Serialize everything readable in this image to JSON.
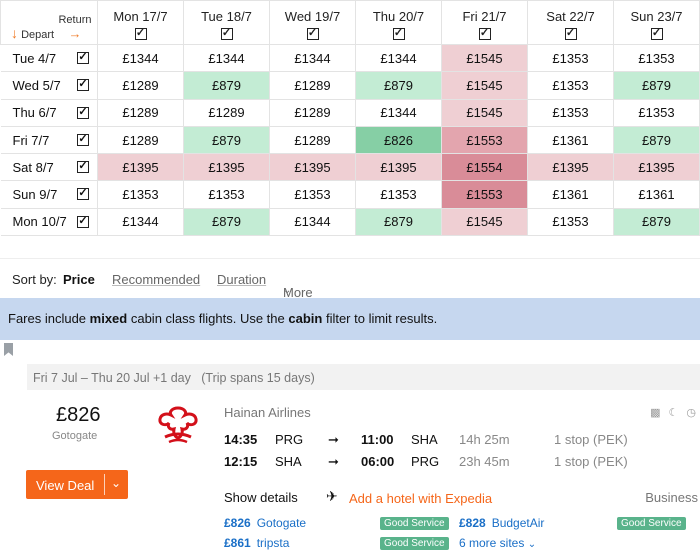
{
  "matrix": {
    "return_label": "Return",
    "depart_label": "Depart",
    "columns": [
      "Mon 17/7",
      "Tue 18/7",
      "Wed 19/7",
      "Thu 20/7",
      "Fri 21/7",
      "Sat 22/7",
      "Sun 23/7"
    ],
    "rows": [
      {
        "label": "Tue 4/7",
        "cells": [
          {
            "p": "£1344",
            "c": ""
          },
          {
            "p": "£1344",
            "c": ""
          },
          {
            "p": "£1344",
            "c": ""
          },
          {
            "p": "£1344",
            "c": ""
          },
          {
            "p": "£1545",
            "c": "r1"
          },
          {
            "p": "£1353",
            "c": ""
          },
          {
            "p": "£1353",
            "c": ""
          }
        ]
      },
      {
        "label": "Wed 5/7",
        "cells": [
          {
            "p": "£1289",
            "c": ""
          },
          {
            "p": "£879",
            "c": "g1"
          },
          {
            "p": "£1289",
            "c": ""
          },
          {
            "p": "£879",
            "c": "g1"
          },
          {
            "p": "£1545",
            "c": "r1"
          },
          {
            "p": "£1353",
            "c": ""
          },
          {
            "p": "£879",
            "c": "g1"
          }
        ]
      },
      {
        "label": "Thu 6/7",
        "cells": [
          {
            "p": "£1289",
            "c": ""
          },
          {
            "p": "£1289",
            "c": ""
          },
          {
            "p": "£1289",
            "c": ""
          },
          {
            "p": "£1344",
            "c": ""
          },
          {
            "p": "£1545",
            "c": "r1"
          },
          {
            "p": "£1353",
            "c": ""
          },
          {
            "p": "£1353",
            "c": ""
          }
        ]
      },
      {
        "label": "Fri 7/7",
        "cells": [
          {
            "p": "£1289",
            "c": ""
          },
          {
            "p": "£879",
            "c": "g1"
          },
          {
            "p": "£1289",
            "c": ""
          },
          {
            "p": "£826",
            "c": "g2"
          },
          {
            "p": "£1553",
            "c": "r2"
          },
          {
            "p": "£1361",
            "c": ""
          },
          {
            "p": "£879",
            "c": "g1"
          }
        ]
      },
      {
        "label": "Sat 8/7",
        "cells": [
          {
            "p": "£1395",
            "c": "r1"
          },
          {
            "p": "£1395",
            "c": "r1"
          },
          {
            "p": "£1395",
            "c": "r1"
          },
          {
            "p": "£1395",
            "c": "r1"
          },
          {
            "p": "£1554",
            "c": "r3"
          },
          {
            "p": "£1395",
            "c": "r1"
          },
          {
            "p": "£1395",
            "c": "r1"
          }
        ]
      },
      {
        "label": "Sun 9/7",
        "cells": [
          {
            "p": "£1353",
            "c": ""
          },
          {
            "p": "£1353",
            "c": ""
          },
          {
            "p": "£1353",
            "c": ""
          },
          {
            "p": "£1353",
            "c": ""
          },
          {
            "p": "£1553",
            "c": "r3"
          },
          {
            "p": "£1361",
            "c": ""
          },
          {
            "p": "£1361",
            "c": ""
          }
        ]
      },
      {
        "label": "Mon 10/7",
        "cells": [
          {
            "p": "£1344",
            "c": ""
          },
          {
            "p": "£879",
            "c": "g1"
          },
          {
            "p": "£1344",
            "c": ""
          },
          {
            "p": "£879",
            "c": "g1"
          },
          {
            "p": "£1545",
            "c": "r1"
          },
          {
            "p": "£1353",
            "c": ""
          },
          {
            "p": "£879",
            "c": "g1"
          }
        ]
      }
    ]
  },
  "sort": {
    "label": "Sort by:",
    "options": [
      "Price",
      "Recommended",
      "Duration",
      "More"
    ]
  },
  "banner": {
    "t1": "Fares include ",
    "b1": "mixed",
    "t2": " cabin class flights. Use the ",
    "b2": "cabin",
    "t3": " filter to limit results."
  },
  "result": {
    "header": "Fri 7 Jul – Thu 20 Jul +1 day   (Trip spans 15 days)",
    "price": "£826",
    "agent": "Gotogate",
    "view_deal": "View Deal",
    "airline": "Hainan Airlines",
    "legs": [
      {
        "dep_time": "14:35",
        "dep_airport": "PRG",
        "arr_time": "11:00",
        "arr_airport": "SHA",
        "duration": "14h 25m",
        "stops": "1 stop (PEK)"
      },
      {
        "dep_time": "12:15",
        "dep_airport": "SHA",
        "arr_time": "06:00",
        "arr_airport": "PRG",
        "duration": "23h 45m",
        "stops": "1 stop (PEK)"
      }
    ],
    "show_details": "Show details",
    "hotel": "Add a hotel with Expedia",
    "cabin": "Business",
    "providers": [
      {
        "price": "£826",
        "name": "Gotogate",
        "badge": "Good Service"
      },
      {
        "price": "£828",
        "name": "BudgetAir",
        "badge": "Good Service"
      },
      {
        "price": "£861",
        "name": "tripsta",
        "badge": "Good Service"
      }
    ],
    "more_sites": "6 more sites"
  },
  "colors": {
    "accent": "#f5661a",
    "link": "#1a6fc7",
    "banner": "#c6d7ef",
    "good": "#59b38b"
  }
}
